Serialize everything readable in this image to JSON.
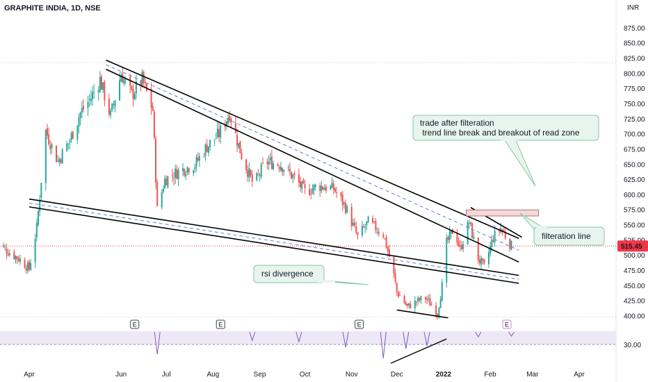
{
  "header": {
    "symbol_line": "GRAPHITE INDIA, 1D, NSE"
  },
  "price_axis": {
    "currency": "INR",
    "top_partial_label": "875.00"
  },
  "last_price": {
    "value": 515.45,
    "label": "515.45",
    "color": "#f23645"
  },
  "annotations": {
    "trade_note": [
      "trade after filteration",
      " trend line break and breakout of read zone"
    ],
    "filteration_line": "filteration line",
    "rsi_divergence": "rsi divergence",
    "callout_bg": "#e8f5ee",
    "callout_border": "#7fc7a4",
    "resistance_zone_color": "#f6d9d9"
  },
  "earnings_badges": [
    "E",
    "E",
    "E",
    "E"
  ],
  "colors": {
    "up_candle": "#26a69a",
    "down_candle": "#ef5350",
    "trendline": "#000000",
    "channel_midline": "#5b7fd6",
    "rsi_line": "#7e57c2",
    "rsi_band": "#ede7f6"
  },
  "chart_data": {
    "type": "candlestick",
    "title": "GRAPHITE INDIA, 1D, NSE",
    "y_unit": "INR",
    "ylim": [
      337,
      880
    ],
    "y_ticks": [
      350,
      375,
      400,
      425,
      450,
      475,
      500,
      525,
      550,
      575,
      600,
      625,
      650,
      675,
      700,
      725,
      750,
      775,
      800,
      825,
      850
    ],
    "x_ticks": [
      "Apr",
      "Jun",
      "Jul",
      "Aug",
      "Sep",
      "Oct",
      "Nov",
      "Dec",
      "2022",
      "Feb",
      "Mar",
      "Apr"
    ],
    "x_tick_dates": [
      "2021-04-01",
      "2021-06-01",
      "2021-07-01",
      "2021-08-01",
      "2021-09-01",
      "2021-10-01",
      "2021-11-01",
      "2021-12-01",
      "2022-01-01",
      "2022-02-01",
      "2022-03-01",
      "2022-04-01"
    ],
    "price_path": [
      {
        "date": "2021-03-10",
        "close": 520
      },
      {
        "date": "2021-03-25",
        "close": 495
      },
      {
        "date": "2021-04-01",
        "close": 478
      },
      {
        "date": "2021-04-06",
        "close": 545
      },
      {
        "date": "2021-04-12",
        "close": 705
      },
      {
        "date": "2021-04-20",
        "close": 655
      },
      {
        "date": "2021-04-28",
        "close": 690
      },
      {
        "date": "2021-05-05",
        "close": 735
      },
      {
        "date": "2021-05-12",
        "close": 760
      },
      {
        "date": "2021-05-18",
        "close": 790
      },
      {
        "date": "2021-05-25",
        "close": 730
      },
      {
        "date": "2021-06-01",
        "close": 800
      },
      {
        "date": "2021-06-08",
        "close": 765
      },
      {
        "date": "2021-06-15",
        "close": 790
      },
      {
        "date": "2021-06-22",
        "close": 740
      },
      {
        "date": "2021-06-25",
        "close": 575
      },
      {
        "date": "2021-06-30",
        "close": 625
      },
      {
        "date": "2021-07-10",
        "close": 640
      },
      {
        "date": "2021-07-20",
        "close": 650
      },
      {
        "date": "2021-07-28",
        "close": 680
      },
      {
        "date": "2021-08-05",
        "close": 700
      },
      {
        "date": "2021-08-12",
        "close": 735
      },
      {
        "date": "2021-08-17",
        "close": 690
      },
      {
        "date": "2021-08-20",
        "close": 665
      },
      {
        "date": "2021-08-28",
        "close": 615
      },
      {
        "date": "2021-09-05",
        "close": 655
      },
      {
        "date": "2021-09-15",
        "close": 650
      },
      {
        "date": "2021-09-25",
        "close": 625
      },
      {
        "date": "2021-10-01",
        "close": 605
      },
      {
        "date": "2021-10-10",
        "close": 615
      },
      {
        "date": "2021-10-20",
        "close": 610
      },
      {
        "date": "2021-10-28",
        "close": 580
      },
      {
        "date": "2021-11-05",
        "close": 530
      },
      {
        "date": "2021-11-12",
        "close": 555
      },
      {
        "date": "2021-11-22",
        "close": 535
      },
      {
        "date": "2021-11-28",
        "close": 480
      },
      {
        "date": "2021-12-01",
        "close": 440
      },
      {
        "date": "2021-12-08",
        "close": 415
      },
      {
        "date": "2021-12-15",
        "close": 425
      },
      {
        "date": "2021-12-20",
        "close": 430
      },
      {
        "date": "2021-12-25",
        "close": 415
      },
      {
        "date": "2021-12-28",
        "close": 405
      },
      {
        "date": "2021-12-31",
        "close": 450
      },
      {
        "date": "2022-01-03",
        "close": 520
      },
      {
        "date": "2022-01-08",
        "close": 545
      },
      {
        "date": "2022-01-12",
        "close": 510
      },
      {
        "date": "2022-01-18",
        "close": 555
      },
      {
        "date": "2022-01-24",
        "close": 495
      },
      {
        "date": "2022-01-28",
        "close": 480
      },
      {
        "date": "2022-02-03",
        "close": 530
      },
      {
        "date": "2022-02-08",
        "close": 545
      },
      {
        "date": "2022-02-15",
        "close": 515.45
      }
    ],
    "trendlines": [
      {
        "role": "upper channel top",
        "from": {
          "date": "2021-05-22",
          "price": 822
        },
        "to": {
          "date": "2022-02-20",
          "price": 528
        }
      },
      {
        "role": "upper channel bottom",
        "from": {
          "date": "2021-05-22",
          "price": 807
        },
        "to": {
          "date": "2022-02-20",
          "price": 489
        }
      },
      {
        "role": "lower channel top",
        "from": {
          "date": "2021-04-01",
          "price": 593
        },
        "to": {
          "date": "2022-02-20",
          "price": 467
        }
      },
      {
        "role": "lower channel bottom",
        "from": {
          "date": "2021-04-01",
          "price": 580
        },
        "to": {
          "date": "2022-02-20",
          "price": 454
        }
      },
      {
        "role": "filteration line",
        "from": {
          "date": "2022-01-19",
          "price": 579
        },
        "to": {
          "date": "2022-02-22",
          "price": 530
        }
      },
      {
        "role": "rsi divergence (price)",
        "from": {
          "date": "2021-12-01",
          "price": 410
        },
        "to": {
          "date": "2022-01-04",
          "price": 397
        }
      }
    ],
    "horizontal_lines": [
      {
        "role": "last price",
        "price": 515.45
      },
      {
        "role": "dotted level",
        "price": 398
      },
      {
        "role": "dotted level",
        "price": 818
      }
    ],
    "resistance_zone": {
      "from_date": "2022-01-16",
      "to_date": "2022-03-05",
      "price_low": 565,
      "price_high": 575
    },
    "rsi": {
      "level_label": "30.00",
      "level": 30,
      "divergence": {
        "from_date": "2021-11-27",
        "to_date": "2022-01-03",
        "direction": "rising"
      }
    }
  }
}
